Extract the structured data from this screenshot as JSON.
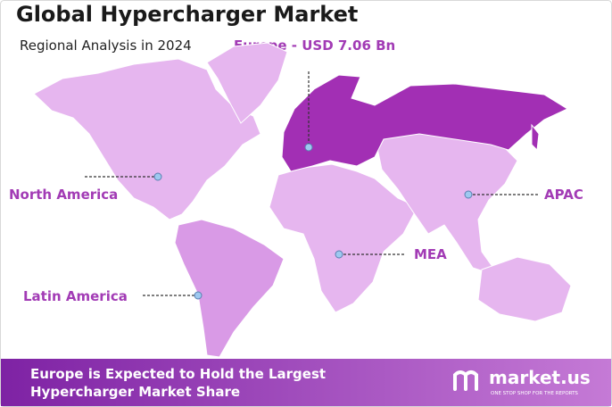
{
  "header": {
    "title": "Global Hypercharger Market",
    "subtitle": "Regional Analysis in 2024",
    "highlight": "Europe - USD 7.06 Bn"
  },
  "regions": [
    "North America",
    "Latin America",
    "MEA",
    "APAC"
  ],
  "footer": {
    "lines": [
      "Europe is Expected to Hold the Largest",
      "Hypercharger Market Share"
    ],
    "brand": "market.us",
    "tagline": "ONE STOP SHOP FOR THE REPORTS"
  }
}
